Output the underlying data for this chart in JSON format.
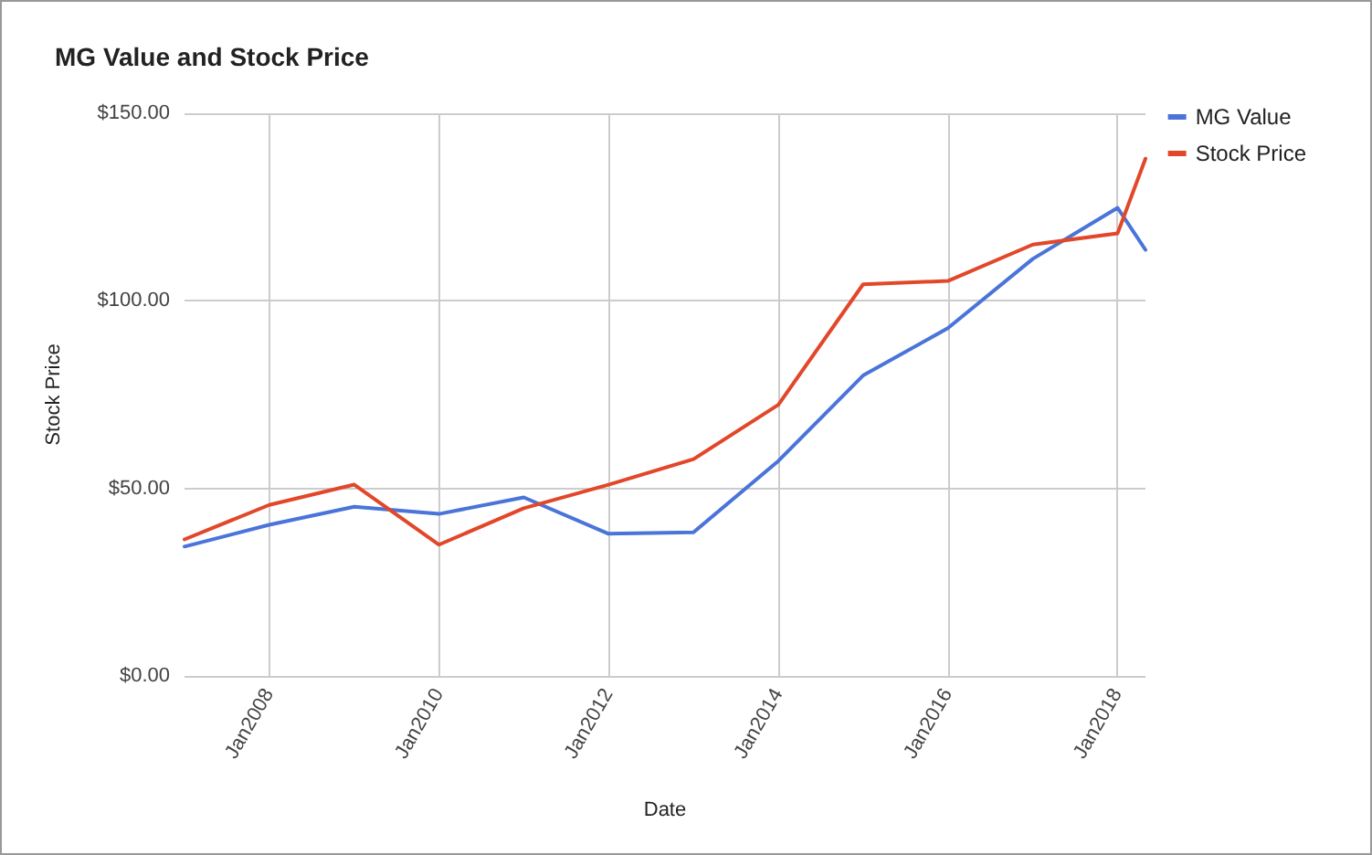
{
  "chart_data": {
    "type": "line",
    "title": "MG Value and Stock Price",
    "xlabel": "Date",
    "ylabel": "Stock Price",
    "x": [
      "2007-01",
      "2008-01",
      "2009-01",
      "2010-01",
      "2011-01",
      "2012-01",
      "2013-01",
      "2014-01",
      "2015-01",
      "2016-01",
      "2017-01",
      "2018-01",
      "2018-05"
    ],
    "series": [
      {
        "name": "MG Value",
        "color": "#4a74d9",
        "values": [
          34.5,
          40.3,
          45.1,
          43.2,
          47.6,
          37.9,
          38.3,
          57.3,
          80.1,
          92.7,
          111.2,
          124.8,
          113.6
        ]
      },
      {
        "name": "Stock Price",
        "color": "#e2472a",
        "values": [
          36.4,
          45.6,
          51,
          35,
          44.7,
          51,
          57.8,
          72.3,
          104.4,
          105.3,
          115,
          118,
          137.9
        ]
      }
    ],
    "xlim": [
      "2007-01",
      "2018-05"
    ],
    "xticks": [
      {
        "value": "2008-01",
        "label": "Jan2008"
      },
      {
        "value": "2010-01",
        "label": "Jan2010"
      },
      {
        "value": "2012-01",
        "label": "Jan2012"
      },
      {
        "value": "2014-01",
        "label": "Jan2014"
      },
      {
        "value": "2016-01",
        "label": "Jan2016"
      },
      {
        "value": "2018-01",
        "label": "Jan2018"
      }
    ],
    "ylim": [
      0,
      150
    ],
    "yticks": [
      {
        "value": 0,
        "label": "$0.00"
      },
      {
        "value": 50,
        "label": "$50.00"
      },
      {
        "value": 100,
        "label": "$100.00"
      },
      {
        "value": 150,
        "label": "$150.00"
      }
    ],
    "grid": true,
    "legend": "top right",
    "marker": "none",
    "line_style": "solid"
  }
}
